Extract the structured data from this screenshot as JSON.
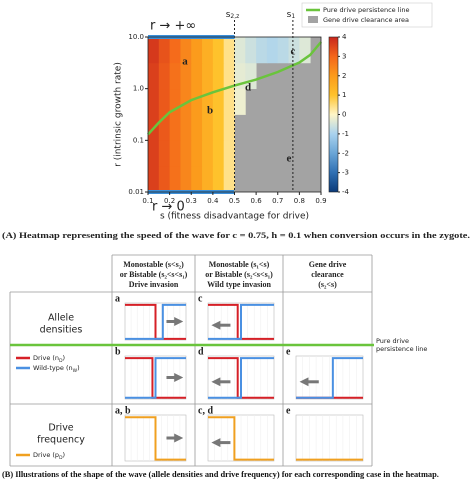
{
  "chart_data": {
    "type": "heatmap",
    "xlabel": "s (fitness disadvantage for drive)",
    "ylabel": "r (intrinsic growth rate)",
    "x": [
      0.125,
      0.175,
      0.225,
      0.275,
      0.325,
      0.375,
      0.425,
      0.475,
      0.525,
      0.575,
      0.625,
      0.675,
      0.725,
      0.775,
      0.825,
      0.875
    ],
    "y": [
      0.0178,
      0.0562,
      0.178,
      0.562,
      1.78,
      5.62
    ],
    "values": [
      [
        3.6,
        3.2,
        2.8,
        2.4,
        2.0,
        1.5,
        1.0,
        0.4,
        null,
        null,
        null,
        null,
        null,
        null,
        null,
        null
      ],
      [
        3.6,
        3.2,
        2.8,
        2.4,
        2.0,
        1.5,
        1.0,
        0.4,
        null,
        null,
        null,
        null,
        null,
        null,
        null,
        null
      ],
      [
        3.6,
        3.2,
        2.8,
        2.4,
        2.0,
        1.5,
        1.0,
        0.4,
        null,
        null,
        null,
        null,
        null,
        null,
        null,
        null
      ],
      [
        3.6,
        3.2,
        2.8,
        2.4,
        2.0,
        1.5,
        1.0,
        0.4,
        -0.2,
        null,
        null,
        null,
        null,
        null,
        null,
        null
      ],
      [
        3.6,
        3.2,
        2.8,
        2.4,
        2.0,
        1.5,
        1.0,
        0.4,
        -0.3,
        -0.4,
        null,
        null,
        null,
        null,
        null,
        null
      ],
      [
        3.7,
        3.3,
        2.9,
        2.4,
        2.0,
        1.5,
        1.0,
        0.4,
        -0.4,
        -0.6,
        -0.8,
        -0.9,
        -0.8,
        -0.6,
        -0.4,
        null
      ]
    ],
    "xlim": [
      0.1,
      0.9
    ],
    "xticks": [
      0.1,
      0.2,
      0.3,
      0.4,
      0.5,
      0.6,
      0.7,
      0.8,
      0.9
    ],
    "ylim": [
      0.01,
      10
    ],
    "yticks": [
      0.01,
      0.1,
      {
        "value": 1,
        "label": "1.0"
      },
      {
        "value": 10,
        "label": "10.0"
      }
    ],
    "yscale": "log",
    "missing_color": "#a3a3a3",
    "area_name": "Gene drive clearance area",
    "colorbar": {
      "lim": [
        -4,
        4
      ],
      "ticks": [
        4,
        3,
        2,
        1,
        0,
        -1,
        -2,
        -3,
        -4
      ],
      "colorscale": [
        [
          -4,
          "#0b3a78"
        ],
        [
          -3,
          "#2f6fb3"
        ],
        [
          -2,
          "#6aa5d6"
        ],
        [
          -1,
          "#a9d2ee"
        ],
        [
          0,
          "#fff6c8"
        ],
        [
          1,
          "#fec22c"
        ],
        [
          2,
          "#fb9b1c"
        ],
        [
          3,
          "#f4661b"
        ],
        [
          4,
          "#c8261c"
        ]
      ]
    },
    "line": {
      "name": "Pure drive persistence line",
      "color": "#6ac43c",
      "x": [
        0.1,
        0.15,
        0.2,
        0.3,
        0.4,
        0.5,
        0.6,
        0.7,
        0.8,
        0.85,
        0.9
      ],
      "y": [
        0.13,
        0.22,
        0.35,
        0.6,
        0.85,
        1.15,
        1.5,
        2.1,
        3.2,
        4.5,
        8
      ]
    },
    "vlines": [
      {
        "x": 0.5,
        "base": "s",
        "sub": "2,z"
      },
      {
        "x": 0.77,
        "base": "s",
        "sub": "1"
      }
    ],
    "annotations": [
      "a",
      "b",
      "c",
      "d",
      "e"
    ],
    "r_limits": {
      "high": "r → +∞",
      "low": "r → 0"
    },
    "caption": "(A) Heatmap representing the speed of the wave for c = 0.75, h = 0.1 when conversion occurs in the zygote."
  },
  "panel_b": {
    "headers": [
      {
        "lines": [
          "Monostable (s<s₂)",
          "or Bistable (s₂<s<s₁)",
          "Drive invasion"
        ],
        "color": "#d3223a"
      },
      {
        "lines": [
          "Monostable (s₁<s)",
          "or Bistable (s₂<s<s₁)",
          "Wild type invasion"
        ],
        "color": "#4a8ad6"
      },
      {
        "lines": [
          "Gene drive",
          "clearance",
          "(s₂<s)"
        ],
        "color": "#555555"
      }
    ],
    "rows": [
      {
        "label": [
          "Allele",
          "densities"
        ],
        "legend": [
          {
            "name": "Drive (n",
            "sub": "D",
            "end": ")",
            "color": "#d62027"
          },
          {
            "name": "Wild-type (n",
            "sub": "W",
            "end": ")",
            "color": "#4a90e2"
          }
        ]
      },
      {
        "label": [
          "Drive",
          "frequency"
        ],
        "legend": [
          {
            "name": "Drive (p",
            "sub": "D",
            "end": ")",
            "color": "#f0a020"
          }
        ]
      }
    ],
    "cells": [
      [
        "a",
        "c"
      ],
      [
        "b",
        "d",
        "e"
      ],
      [
        "a, b",
        "c, d",
        "e"
      ]
    ],
    "persistence_label": [
      "Pure drive",
      "persistence line"
    ],
    "caption": "(B) Illustrations of the shape of the wave (allele densities and drive frequency) for each corresponding case in the heatmap."
  }
}
